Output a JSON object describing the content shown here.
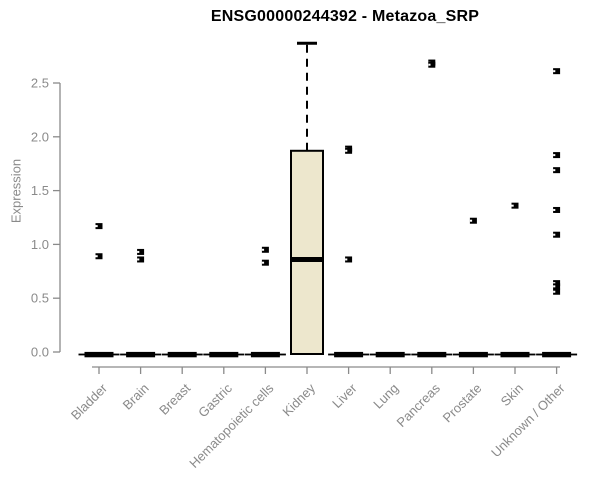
{
  "chart_data": {
    "type": "boxplot",
    "title": "ENSG00000244392 - Metazoa_SRP",
    "xlabel": "",
    "ylabel": "Expression",
    "ylim": [
      0,
      2.9
    ],
    "yticks": [
      0.0,
      0.5,
      1.0,
      1.5,
      2.0,
      2.5
    ],
    "legend": "none",
    "grid": false,
    "groups": [
      {
        "category": "Bladder",
        "box": {
          "q1": 0,
          "median": 0,
          "q3": 0,
          "whisker_low": 0,
          "whisker_high": 0
        },
        "points": [
          1.17,
          0.89
        ]
      },
      {
        "category": "Brain",
        "box": {
          "q1": 0,
          "median": 0,
          "q3": 0,
          "whisker_low": 0,
          "whisker_high": 0
        },
        "points": [
          0.93,
          0.86
        ]
      },
      {
        "category": "Breast",
        "box": {
          "q1": 0,
          "median": 0,
          "q3": 0,
          "whisker_low": 0,
          "whisker_high": 0
        },
        "points": []
      },
      {
        "category": "Gastric",
        "box": {
          "q1": 0,
          "median": 0,
          "q3": 0,
          "whisker_low": 0,
          "whisker_high": 0
        },
        "points": []
      },
      {
        "category": "Hematopoietic cells",
        "box": {
          "q1": 0,
          "median": 0,
          "q3": 0,
          "whisker_low": 0,
          "whisker_high": 0
        },
        "points": [
          0.95,
          0.83
        ]
      },
      {
        "category": "Kidney",
        "box": {
          "q1": 0,
          "median": 0.86,
          "q3": 1.87,
          "whisker_low": 0,
          "whisker_high": 2.87
        },
        "points": []
      },
      {
        "category": "Liver",
        "box": {
          "q1": 0,
          "median": 0,
          "q3": 0,
          "whisker_low": 0,
          "whisker_high": 0
        },
        "points": [
          1.89,
          1.87,
          0.86
        ]
      },
      {
        "category": "Lung",
        "box": {
          "q1": 0,
          "median": 0,
          "q3": 0,
          "whisker_low": 0,
          "whisker_high": 0
        },
        "points": []
      },
      {
        "category": "Pancreas",
        "box": {
          "q1": 0,
          "median": 0,
          "q3": 0,
          "whisker_low": 0,
          "whisker_high": 0
        },
        "points": [
          2.69,
          2.67
        ]
      },
      {
        "category": "Prostate",
        "box": {
          "q1": 0,
          "median": 0,
          "q3": 0,
          "whisker_low": 0,
          "whisker_high": 0
        },
        "points": [
          1.22
        ]
      },
      {
        "category": "Skin",
        "box": {
          "q1": 0,
          "median": 0,
          "q3": 0,
          "whisker_low": 0,
          "whisker_high": 0
        },
        "points": [
          1.36
        ]
      },
      {
        "category": "Unknown / Other",
        "box": {
          "q1": 0,
          "median": 0,
          "q3": 0,
          "whisker_low": 0,
          "whisker_high": 0
        },
        "points": [
          2.61,
          1.83,
          1.69,
          1.32,
          1.09,
          0.64,
          0.61,
          0.56
        ]
      }
    ],
    "colors": {
      "title": "#000000",
      "axis": "#8a8a8a",
      "tick_label": "#8a8a8a",
      "box_fill": "#ede7cd",
      "box_border": "#000000",
      "median": "#000000",
      "point": "#000000",
      "background": "#ffffff"
    }
  }
}
